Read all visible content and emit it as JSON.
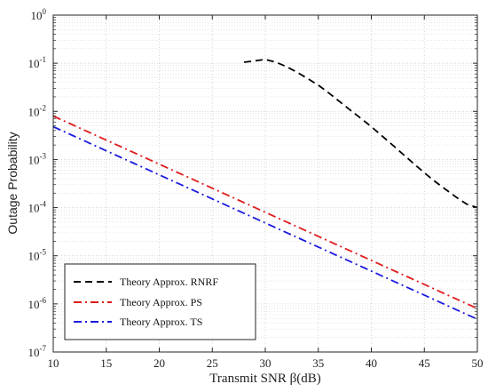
{
  "chart_data": {
    "type": "line",
    "title": "",
    "xlabel": "Transmit SNR β(dB)",
    "ylabel": "Outage Probability",
    "xlim": [
      10,
      50
    ],
    "ylim": [
      1e-07,
      1
    ],
    "yscale": "log",
    "grid": true,
    "legend_position": "bottom-left",
    "x_ticks": [
      "10",
      "15",
      "20",
      "25",
      "30",
      "35",
      "40",
      "45",
      "50"
    ],
    "y_ticks": [
      {
        "base": "10",
        "exp": "0"
      },
      {
        "base": "10",
        "exp": "-1"
      },
      {
        "base": "10",
        "exp": "-2"
      },
      {
        "base": "10",
        "exp": "-3"
      },
      {
        "base": "10",
        "exp": "-4"
      },
      {
        "base": "10",
        "exp": "-5"
      },
      {
        "base": "10",
        "exp": "-6"
      },
      {
        "base": "10",
        "exp": "-7"
      }
    ],
    "series": [
      {
        "name": "Theory Approx. RNRF",
        "color": "#000000",
        "dash": "dashed",
        "x": [
          28,
          29,
          30,
          31,
          32,
          33,
          34,
          35,
          36,
          37,
          38,
          39,
          40,
          41,
          42,
          43,
          44,
          45,
          46,
          47,
          48,
          49,
          50
        ],
        "y": [
          0.105,
          0.112,
          0.12,
          0.105,
          0.085,
          0.065,
          0.048,
          0.035,
          0.024,
          0.016,
          0.0107,
          0.0072,
          0.0048,
          0.0031,
          0.002,
          0.00128,
          0.00082,
          0.00053,
          0.00035,
          0.00024,
          0.000165,
          0.000118,
          0.0001
        ]
      },
      {
        "name": "Theory Approx. PS",
        "color": "#e01a1a",
        "dash": "dashdot",
        "x": [
          10,
          50
        ],
        "y": [
          0.008,
          8e-07
        ]
      },
      {
        "name": "Theory Approx. TS",
        "color": "#1a1ae0",
        "dash": "dashdot",
        "x": [
          10,
          50
        ],
        "y": [
          0.0048,
          4.8e-07
        ]
      }
    ]
  }
}
